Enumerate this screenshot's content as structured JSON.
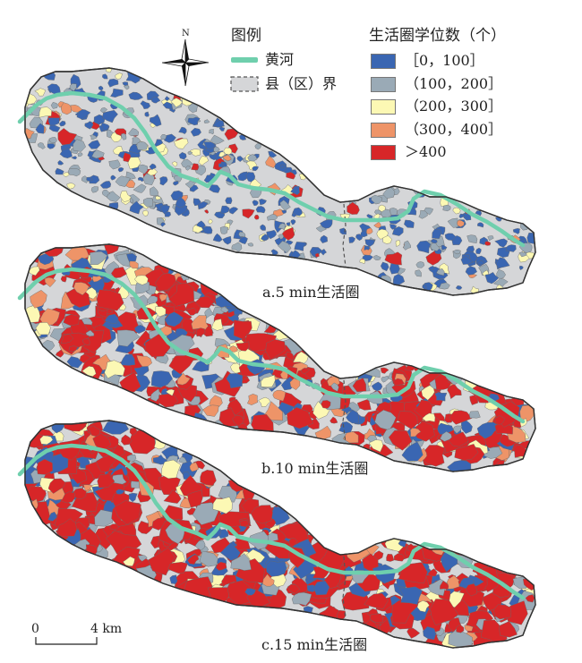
{
  "legend": {
    "title_left": "图例",
    "title_right": "生活圈学位数（个）",
    "river_label": "黄河",
    "county_label": "县（区）界",
    "north_label": "N",
    "classes": [
      {
        "label": "［0，100］",
        "color": "#3a66b2"
      },
      {
        "label": "（100，200］",
        "color": "#9aaab6"
      },
      {
        "label": "（200，300］",
        "color": "#fcf8b4"
      },
      {
        "label": "（300，400］",
        "color": "#ee9468"
      },
      {
        "label": "＞400",
        "color": "#d72628"
      }
    ]
  },
  "colors": {
    "base": "#d5d6d8",
    "river": "#6fcfad",
    "outline": "#333333",
    "county": "#555555"
  },
  "panels": [
    {
      "caption": "a.5 min生活圈",
      "mix": [
        0.45,
        0.32,
        0.12,
        0.05,
        0.06
      ],
      "count": 460,
      "coverage": 0.35
    },
    {
      "caption": "b.10 min生活圈",
      "mix": [
        0.2,
        0.16,
        0.12,
        0.1,
        0.42
      ],
      "count": 520,
      "coverage": 0.75
    },
    {
      "caption": "c.15 min生活圈",
      "mix": [
        0.2,
        0.12,
        0.08,
        0.07,
        0.53
      ],
      "count": 560,
      "coverage": 0.86
    }
  ],
  "scale": {
    "start": "0",
    "end": "4 km"
  }
}
